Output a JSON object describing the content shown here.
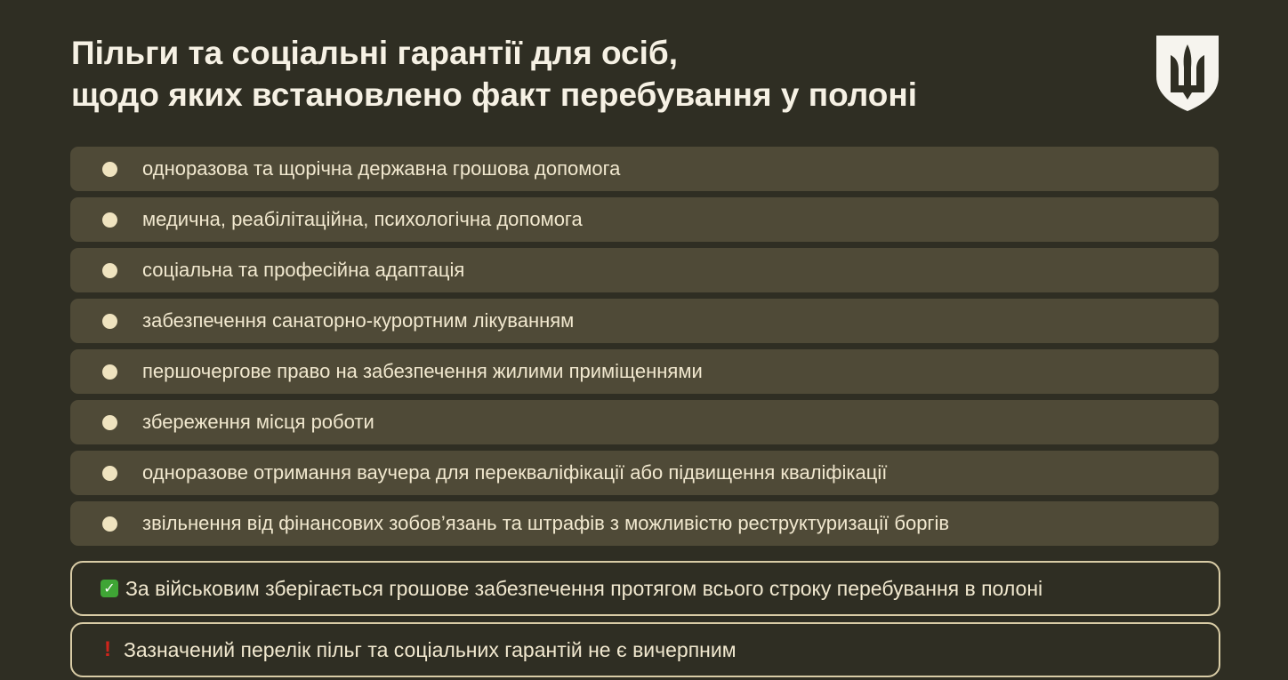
{
  "title": {
    "line1": "Пільги та соціальні гарантії для осіб,",
    "line2": "щодо яких встановлено факт перебування у полоні"
  },
  "emblem": "trident-shield-icon",
  "benefits": [
    "одноразова та щорічна державна грошова допомога",
    "медична, реабілітаційна, психологічна допомога",
    "соціальна та професійна адаптація",
    "забезпечення санаторно-курортним лікуванням",
    "першочергове право на забезпечення жилими приміщеннями",
    "збереження місця роботи",
    "одноразове отримання ваучера для перекваліфікації або підвищення кваліфікації",
    "звільнення від фінансових зобов’язань та штрафів з можливістю реструктуризації боргів"
  ],
  "notes": {
    "check": {
      "icon": "check-mark-icon",
      "text": "За військовим зберігається грошове забезпечення протягом всього строку перебування в полоні"
    },
    "warning": {
      "icon": "exclamation-icon",
      "text": "Зазначений перелік пільг та соціальних гарантій не є вичерпним"
    }
  },
  "colors": {
    "background": "#2f2e23",
    "row": "#4f4a37",
    "bullet": "#efe3bf",
    "text": "#f1e8cf"
  }
}
